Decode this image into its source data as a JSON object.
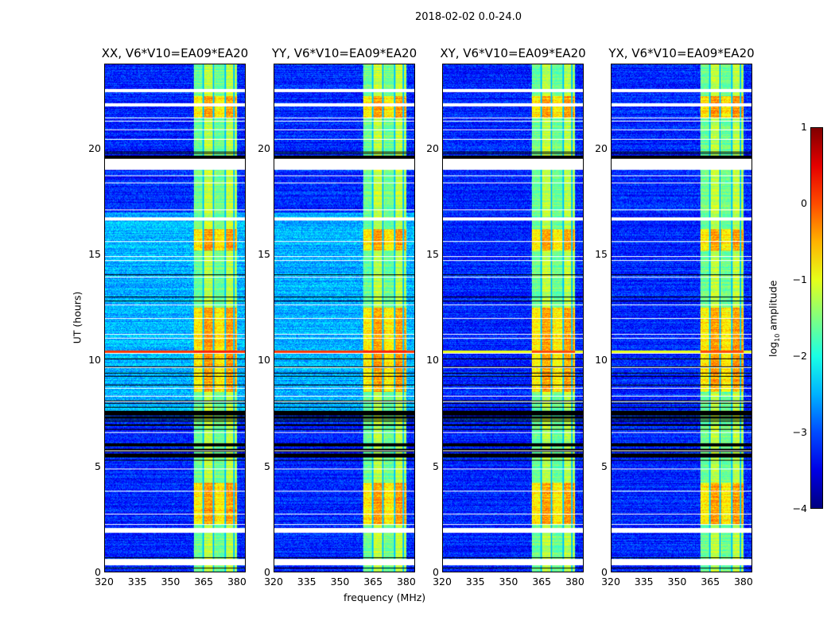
{
  "chart_data": {
    "type": "heatmap",
    "title": "2018-02-02 0.0-24.0",
    "xlabel": "frequency (MHz)",
    "ylabel": "UT (hours)",
    "xlim": [
      320,
      384
    ],
    "ylim": [
      0,
      24
    ],
    "xticks": [
      "320",
      "335",
      "350",
      "365",
      "380"
    ],
    "yticks": [
      "0",
      "5",
      "10",
      "15",
      "20"
    ],
    "panels": [
      {
        "title": "XX, V6*V10=EA09*EA20",
        "pol": "XX"
      },
      {
        "title": "YY, V6*V10=EA09*EA20",
        "pol": "YY"
      },
      {
        "title": "XY, V6*V10=EA09*EA20",
        "pol": "XY"
      },
      {
        "title": "YX, V6*V10=EA09*EA20",
        "pol": "YX"
      }
    ],
    "bright_band_mhz": [
      360.5,
      380.5
    ],
    "band_hotspots_hours": [
      [
        2.2,
        4.2
      ],
      [
        8.5,
        12.5
      ],
      [
        15.2,
        16.2
      ],
      [
        21.5,
        22.5
      ]
    ],
    "strong_rfi_line_hours": 10.4,
    "flagged_gaps_hours": [
      [
        0.3,
        0.6
      ],
      [
        1.85,
        2.05
      ],
      [
        19.0,
        19.7
      ],
      [
        22.0,
        22.15
      ],
      [
        22.7,
        22.85
      ],
      [
        16.6,
        16.75
      ]
    ],
    "colorbar": {
      "label": "log10 amplitude",
      "label_main": "log",
      "label_sub": "10",
      "label_rest": " amplitude",
      "range": [
        -4,
        1
      ],
      "ticks": [
        "1",
        "0",
        "−1",
        "−2",
        "−3",
        "−4"
      ],
      "colormap": "jet"
    }
  }
}
